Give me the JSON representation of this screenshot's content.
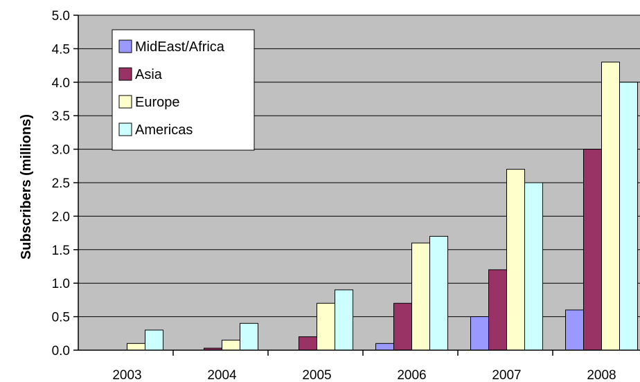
{
  "chart_data": {
    "type": "bar",
    "ylabel": "Subscribers (millions)",
    "xlabel": "",
    "ylim": [
      0,
      5.0
    ],
    "yticks": [
      "0.0",
      "0.5",
      "1.0",
      "1.5",
      "2.0",
      "2.5",
      "3.0",
      "3.5",
      "4.0",
      "4.5",
      "5.0"
    ],
    "categories": [
      "2003",
      "2004",
      "2005",
      "2006",
      "2007",
      "2008"
    ],
    "series": [
      {
        "name": "MidEast/Africa",
        "color": "#9999ff",
        "values": [
          0,
          0,
          0,
          0.1,
          0.5,
          0.6
        ]
      },
      {
        "name": "Asia",
        "color": "#993366",
        "values": [
          0,
          0.03,
          0.2,
          0.7,
          1.2,
          3.0
        ]
      },
      {
        "name": "Europe",
        "color": "#ffffcc",
        "values": [
          0.1,
          0.15,
          0.7,
          1.6,
          2.7,
          4.3
        ]
      },
      {
        "name": "Americas",
        "color": "#ccffff",
        "values": [
          0.3,
          0.4,
          0.9,
          1.7,
          2.5,
          4.0
        ]
      }
    ],
    "grid": true,
    "plot_background": "#c0c0c0",
    "legend_position": "top-left"
  }
}
